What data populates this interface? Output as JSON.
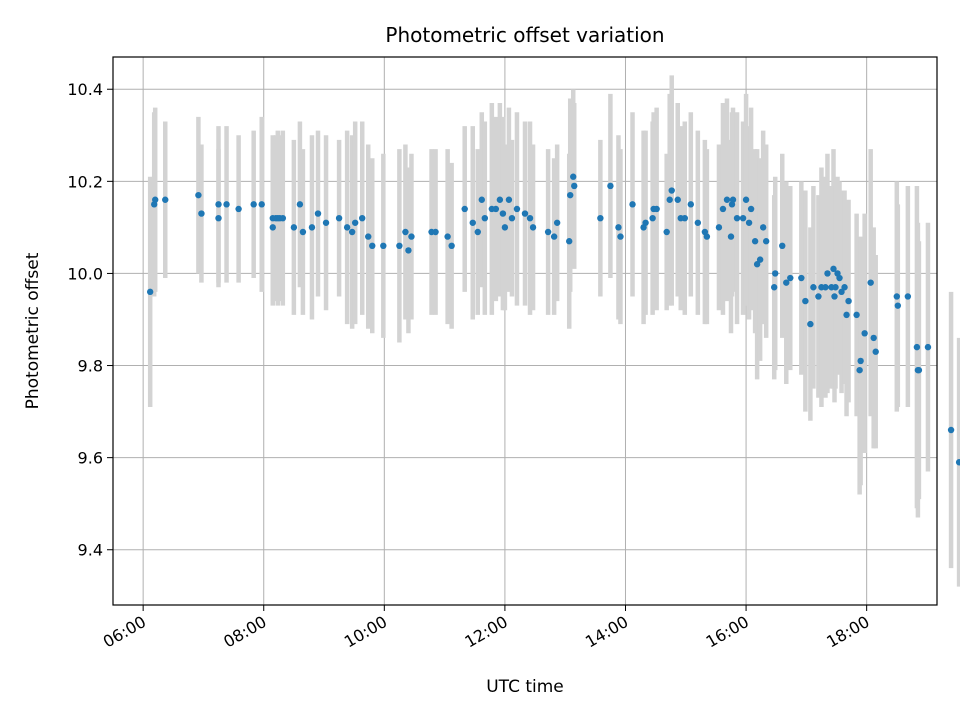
{
  "chart_data": {
    "type": "scatter",
    "title": "Photometric offset variation",
    "xlabel": "UTC time",
    "ylabel": "Photometric offset",
    "x_unit": "hours UTC",
    "xlim": [
      "05:30",
      "19:10"
    ],
    "ylim": [
      9.28,
      10.47
    ],
    "x_ticks": [
      "06:00",
      "08:00",
      "10:00",
      "12:00",
      "14:00",
      "16:00",
      "18:00"
    ],
    "y_ticks": [
      "9.4",
      "9.6",
      "9.8",
      "10.0",
      "10.2",
      "10.4"
    ],
    "grid": true,
    "legend": "none",
    "colors": {
      "marker": "#1f77b4",
      "errorbar": "#d3d3d3",
      "grid": "#b0b0b0"
    },
    "series": [
      {
        "points": [
          [
            "06:07",
            9.96,
            0.25
          ],
          [
            "06:11",
            10.15,
            0.2
          ],
          [
            "06:12",
            10.16,
            0.2
          ],
          [
            "06:22",
            10.16,
            0.17
          ],
          [
            "06:55",
            10.17,
            0.17
          ],
          [
            "06:58",
            10.13,
            0.15
          ],
          [
            "07:15",
            10.15,
            0.17
          ],
          [
            "07:15",
            10.12,
            0.15
          ],
          [
            "07:23",
            10.15,
            0.17
          ],
          [
            "07:35",
            10.14,
            0.16
          ],
          [
            "07:50",
            10.15,
            0.16
          ],
          [
            "07:58",
            10.15,
            0.19
          ],
          [
            "08:09",
            10.12,
            0.18
          ],
          [
            "08:09",
            10.1,
            0.17
          ],
          [
            "08:12",
            10.12,
            0.18
          ],
          [
            "08:14",
            10.12,
            0.19
          ],
          [
            "08:16",
            10.12,
            0.18
          ],
          [
            "08:19",
            10.12,
            0.19
          ],
          [
            "08:30",
            10.1,
            0.19
          ],
          [
            "08:36",
            10.15,
            0.18
          ],
          [
            "08:39",
            10.09,
            0.18
          ],
          [
            "08:48",
            10.1,
            0.2
          ],
          [
            "08:54",
            10.13,
            0.18
          ],
          [
            "09:02",
            10.11,
            0.19
          ],
          [
            "09:15",
            10.12,
            0.17
          ],
          [
            "09:23",
            10.1,
            0.21
          ],
          [
            "09:28",
            10.09,
            0.21
          ],
          [
            "09:31",
            10.11,
            0.22
          ],
          [
            "09:38",
            10.12,
            0.21
          ],
          [
            "09:44",
            10.08,
            0.2
          ],
          [
            "09:48",
            10.06,
            0.19
          ],
          [
            "09:59",
            10.06,
            0.2
          ],
          [
            "10:15",
            10.06,
            0.21
          ],
          [
            "10:21",
            10.09,
            0.19
          ],
          [
            "10:24",
            10.05,
            0.18
          ],
          [
            "10:27",
            10.08,
            0.18
          ],
          [
            "10:47",
            10.09,
            0.18
          ],
          [
            "10:51",
            10.09,
            0.18
          ],
          [
            "11:03",
            10.08,
            0.19
          ],
          [
            "11:07",
            10.06,
            0.18
          ],
          [
            "11:20",
            10.14,
            0.18
          ],
          [
            "11:28",
            10.11,
            0.21
          ],
          [
            "11:33",
            10.09,
            0.18
          ],
          [
            "11:37",
            10.16,
            0.19
          ],
          [
            "11:40",
            10.12,
            0.21
          ],
          [
            "11:47",
            10.14,
            0.23
          ],
          [
            "11:51",
            10.14,
            0.2
          ],
          [
            "11:55",
            10.16,
            0.21
          ],
          [
            "11:58",
            10.13,
            0.21
          ],
          [
            "12:00",
            10.1,
            0.18
          ],
          [
            "12:04",
            10.16,
            0.2
          ],
          [
            "12:07",
            10.12,
            0.17
          ],
          [
            "12:12",
            10.14,
            0.21
          ],
          [
            "12:20",
            10.13,
            0.2
          ],
          [
            "12:25",
            10.12,
            0.21
          ],
          [
            "12:28",
            10.1,
            0.18
          ],
          [
            "12:43",
            10.09,
            0.18
          ],
          [
            "12:49",
            10.08,
            0.17
          ],
          [
            "12:52",
            10.11,
            0.17
          ],
          [
            "13:04",
            10.07,
            0.19
          ],
          [
            "13:05",
            10.17,
            0.21
          ],
          [
            "13:08",
            10.21,
            0.19
          ],
          [
            "13:09",
            10.19,
            0.18
          ],
          [
            "13:35",
            10.12,
            0.17
          ],
          [
            "13:45",
            10.19,
            0.2
          ],
          [
            "13:53",
            10.1,
            0.2
          ],
          [
            "13:55",
            10.08,
            0.19
          ],
          [
            "14:07",
            10.15,
            0.2
          ],
          [
            "14:18",
            10.1,
            0.21
          ],
          [
            "14:20",
            10.11,
            0.2
          ],
          [
            "14:27",
            10.12,
            0.21
          ],
          [
            "14:28",
            10.14,
            0.21
          ],
          [
            "14:31",
            10.14,
            0.22
          ],
          [
            "14:41",
            10.09,
            0.17
          ],
          [
            "14:44",
            10.16,
            0.23
          ],
          [
            "14:46",
            10.18,
            0.25
          ],
          [
            "14:52",
            10.16,
            0.21
          ],
          [
            "14:55",
            10.12,
            0.2
          ],
          [
            "14:59",
            10.12,
            0.21
          ],
          [
            "15:05",
            10.15,
            0.2
          ],
          [
            "15:12",
            10.11,
            0.2
          ],
          [
            "15:19",
            10.09,
            0.2
          ],
          [
            "15:21",
            10.08,
            0.19
          ],
          [
            "15:33",
            10.1,
            0.18
          ],
          [
            "15:37",
            10.14,
            0.23
          ],
          [
            "15:41",
            10.16,
            0.22
          ],
          [
            "15:45",
            10.08,
            0.21
          ],
          [
            "15:46",
            10.15,
            0.2
          ],
          [
            "15:47",
            10.16,
            0.2
          ],
          [
            "15:51",
            10.12,
            0.23
          ],
          [
            "15:57",
            10.12,
            0.21
          ],
          [
            "16:00",
            10.16,
            0.23
          ],
          [
            "16:03",
            10.11,
            0.21
          ],
          [
            "16:05",
            10.14,
            0.22
          ],
          [
            "16:09",
            10.07,
            0.2
          ],
          [
            "16:11",
            10.02,
            0.25
          ],
          [
            "16:14",
            10.03,
            0.22
          ],
          [
            "16:17",
            10.1,
            0.21
          ],
          [
            "16:20",
            10.07,
            0.21
          ],
          [
            "16:28",
            9.97,
            0.2
          ],
          [
            "16:29",
            10.0,
            0.21
          ],
          [
            "16:36",
            10.06,
            0.2
          ],
          [
            "16:40",
            9.98,
            0.22
          ],
          [
            "16:44",
            9.99,
            0.2
          ],
          [
            "16:55",
            9.99,
            0.21
          ],
          [
            "16:59",
            9.94,
            0.24
          ],
          [
            "17:04",
            9.89,
            0.21
          ],
          [
            "17:07",
            9.97,
            0.22
          ],
          [
            "17:12",
            9.95,
            0.22
          ],
          [
            "17:15",
            9.97,
            0.26
          ],
          [
            "17:19",
            9.97,
            0.24
          ],
          [
            "17:21",
            10.0,
            0.26
          ],
          [
            "17:25",
            9.97,
            0.22
          ],
          [
            "17:27",
            10.01,
            0.26
          ],
          [
            "17:28",
            9.95,
            0.23
          ],
          [
            "17:29",
            9.97,
            0.22
          ],
          [
            "17:31",
            10.0,
            0.21
          ],
          [
            "17:33",
            9.99,
            0.21
          ],
          [
            "17:35",
            9.96,
            0.22
          ],
          [
            "17:38",
            9.97,
            0.21
          ],
          [
            "17:40",
            9.91,
            0.22
          ],
          [
            "17:42",
            9.94,
            0.22
          ],
          [
            "17:50",
            9.91,
            0.22
          ],
          [
            "17:53",
            9.79,
            0.27
          ],
          [
            "17:54",
            9.81,
            0.27
          ],
          [
            "17:58",
            9.87,
            0.26
          ],
          [
            "18:04",
            9.98,
            0.29
          ],
          [
            "18:07",
            9.86,
            0.24
          ],
          [
            "18:09",
            9.83,
            0.21
          ],
          [
            "18:30",
            9.95,
            0.25
          ],
          [
            "18:31",
            9.93,
            0.22
          ],
          [
            "18:41",
            9.95,
            0.24
          ],
          [
            "18:50",
            9.84,
            0.35
          ],
          [
            "18:51",
            9.79,
            0.32
          ],
          [
            "18:52",
            9.79,
            0.28
          ],
          [
            "19:01",
            9.84,
            0.27
          ],
          [
            "19:24",
            9.66,
            0.3
          ],
          [
            "19:32",
            9.59,
            0.27
          ]
        ]
      }
    ]
  }
}
